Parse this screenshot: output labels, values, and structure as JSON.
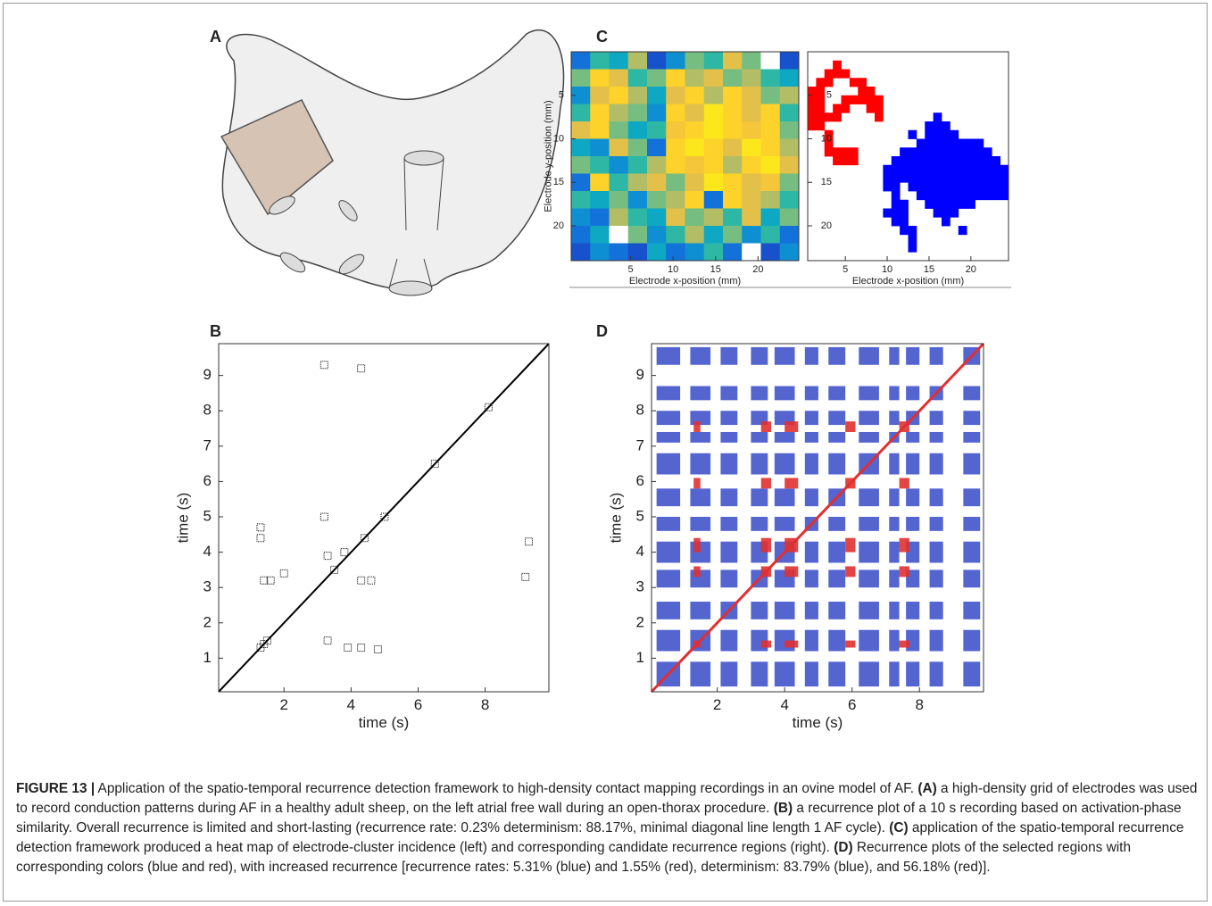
{
  "diagram": {
    "panel": "A"
  },
  "chart_data": [
    {
      "type": "heatmap",
      "panel": "C",
      "xlabel": "Electrode x-position (mm)",
      "ylabel": "Electrode y-position (mm)",
      "xlim": [
        -2,
        24.8
      ],
      "ylim": [
        0,
        24
      ],
      "xticks": [
        5,
        10,
        15,
        20
      ],
      "yticks": [
        5,
        10,
        15,
        20
      ],
      "values": [
        [
          0.2,
          0.5,
          0.4,
          0.7,
          0.1,
          0.3,
          0.6,
          0.5,
          0.8,
          0.6,
          null,
          0.1
        ],
        [
          0.6,
          0.9,
          0.8,
          0.5,
          0.6,
          0.9,
          0.7,
          0.8,
          0.6,
          0.7,
          0.5,
          0.4
        ],
        [
          0.3,
          0.8,
          0.9,
          0.7,
          0.4,
          0.8,
          0.9,
          0.7,
          0.9,
          0.8,
          0.6,
          0.7
        ],
        [
          0.5,
          0.9,
          0.7,
          0.6,
          0.3,
          0.9,
          0.8,
          0.95,
          0.9,
          0.8,
          0.9,
          0.5
        ],
        [
          0.8,
          0.9,
          0.6,
          0.4,
          0.5,
          0.85,
          0.9,
          0.95,
          0.9,
          0.85,
          0.9,
          0.6
        ],
        [
          0.4,
          0.3,
          0.8,
          0.6,
          0.2,
          0.9,
          0.95,
          0.9,
          0.8,
          0.95,
          0.9,
          0.7
        ],
        [
          0.6,
          0.5,
          0.3,
          0.5,
          0.7,
          0.9,
          0.85,
          0.9,
          0.7,
          0.9,
          0.95,
          0.8
        ],
        [
          0.2,
          0.9,
          0.5,
          0.7,
          0.8,
          0.6,
          0.8,
          0.95,
          0.9,
          0.8,
          0.85,
          0.6
        ],
        [
          0.5,
          0.4,
          0.6,
          0.3,
          0.6,
          0.7,
          0.9,
          0.2,
          0.9,
          0.8,
          0.7,
          0.5
        ],
        [
          0.3,
          0.2,
          0.7,
          0.5,
          0.4,
          0.8,
          0.6,
          0.7,
          0.5,
          0.8,
          0.4,
          0.6
        ],
        [
          0.2,
          0.4,
          null,
          0.6,
          0.3,
          0.5,
          0.7,
          0.4,
          0.6,
          0.3,
          0.5,
          0.2
        ],
        [
          0.1,
          0.3,
          0.2,
          0.1,
          0.4,
          0.2,
          0.3,
          0.5,
          0.2,
          null,
          0.1,
          0.3
        ]
      ]
    },
    {
      "type": "region_map",
      "xlabel": "Electrode x-position (mm)",
      "xlim": [
        0.5,
        24.5
      ],
      "ylim": [
        0,
        24
      ],
      "xticks": [
        5,
        10,
        15,
        20
      ],
      "yticks": [
        5,
        10,
        15,
        20
      ],
      "regions": [
        {
          "color": "#ff0000",
          "rows": [
            {
              "y": 2,
              "x": [
                4
              ]
            },
            {
              "y": 3,
              "x": [
                3,
                4,
                5
              ]
            },
            {
              "y": 4,
              "x": [
                2,
                3,
                6,
                7
              ]
            },
            {
              "y": 5,
              "x": [
                1,
                2,
                7,
                8
              ]
            },
            {
              "y": 6,
              "x": [
                1,
                2,
                5,
                6,
                7,
                8,
                9
              ]
            },
            {
              "y": 7,
              "x": [
                1,
                2,
                4,
                5,
                8,
                9
              ]
            },
            {
              "y": 8,
              "x": [
                1,
                2,
                3,
                4,
                9
              ]
            },
            {
              "y": 9,
              "x": [
                1,
                2
              ]
            },
            {
              "y": 10,
              "x": [
                3
              ]
            },
            {
              "y": 11,
              "x": [
                3
              ]
            },
            {
              "y": 12,
              "x": [
                3,
                4,
                5,
                6
              ]
            },
            {
              "y": 13,
              "x": [
                4,
                5,
                6
              ]
            }
          ]
        },
        {
          "color": "#0000ff",
          "rows": [
            {
              "y": 8,
              "x": [
                16
              ]
            },
            {
              "y": 9,
              "x": [
                15,
                16,
                17
              ]
            },
            {
              "y": 10,
              "x": [
                13,
                15,
                16,
                17,
                18
              ]
            },
            {
              "y": 11,
              "x": [
                14,
                15,
                16,
                17,
                18,
                19,
                20,
                21
              ]
            },
            {
              "y": 12,
              "x": [
                12,
                13,
                14,
                15,
                16,
                17,
                18,
                19,
                20,
                21,
                22
              ]
            },
            {
              "y": 13,
              "x": [
                11,
                12,
                13,
                14,
                15,
                16,
                17,
                18,
                19,
                20,
                21,
                22,
                23
              ]
            },
            {
              "y": 14,
              "x": [
                10,
                11,
                12,
                13,
                14,
                15,
                16,
                17,
                18,
                19,
                20,
                21,
                22,
                23,
                24
              ]
            },
            {
              "y": 15,
              "x": [
                10,
                11,
                12,
                13,
                14,
                15,
                16,
                17,
                18,
                19,
                20,
                21,
                22,
                23,
                24
              ]
            },
            {
              "y": 16,
              "x": [
                10,
                11,
                13,
                14,
                15,
                16,
                17,
                18,
                19,
                20,
                21,
                22,
                23,
                24
              ]
            },
            {
              "y": 17,
              "x": [
                11,
                14,
                15,
                16,
                17,
                18,
                19,
                20,
                21,
                22,
                23,
                24
              ]
            },
            {
              "y": 18,
              "x": [
                11,
                12,
                15,
                16,
                17,
                18,
                19,
                20
              ]
            },
            {
              "y": 19,
              "x": [
                10,
                11,
                12,
                16,
                17,
                18
              ]
            },
            {
              "y": 20,
              "x": [
                11,
                12,
                17
              ]
            },
            {
              "y": 21,
              "x": [
                12,
                13,
                19
              ]
            },
            {
              "y": 22,
              "x": [
                13
              ]
            },
            {
              "y": 23,
              "x": [
                13
              ]
            }
          ]
        }
      ]
    },
    {
      "type": "recurrence",
      "panel": "B",
      "xlabel": "time (s)",
      "ylabel": "time (s)",
      "xlim": [
        0.05,
        9.9
      ],
      "ylim": [
        0.05,
        9.9
      ],
      "xticks": [
        2,
        4,
        6,
        8
      ],
      "yticks": [
        1,
        2,
        3,
        4,
        5,
        6,
        7,
        8,
        9
      ],
      "color": "#000000",
      "points": {
        "x": [
          1.4,
          1.5,
          1.3,
          3.2,
          4.3,
          1.3,
          1.4,
          1.6,
          3.2,
          3.3,
          3.8,
          3.3,
          3.9,
          4.3,
          4.8,
          4.3,
          4.6,
          9.2,
          9.3,
          2.0,
          1.3,
          3.5,
          4.4,
          5.0,
          8.1,
          6.5
        ],
        "y": [
          1.4,
          1.5,
          1.3,
          9.3,
          9.2,
          4.4,
          3.2,
          3.2,
          5.0,
          3.9,
          4.0,
          1.5,
          1.3,
          1.3,
          1.25,
          3.2,
          3.2,
          3.3,
          4.3,
          3.4,
          4.7,
          3.5,
          4.4,
          5.0,
          8.1,
          6.5
        ]
      }
    },
    {
      "type": "recurrence_bands",
      "panel": "D",
      "xlabel": "time (s)",
      "ylabel": "time (s)",
      "xlim": [
        0.05,
        9.9
      ],
      "ylim": [
        0.05,
        9.9
      ],
      "xticks": [
        2,
        4,
        6,
        8
      ],
      "yticks": [
        1,
        2,
        3,
        4,
        5,
        6,
        7,
        8,
        9
      ],
      "series": [
        {
          "color": "#2b3fc4",
          "bands": [
            [
              0.2,
              0.9
            ],
            [
              1.2,
              1.8
            ],
            [
              2.1,
              2.6
            ],
            [
              3.0,
              3.5
            ],
            [
              3.7,
              4.3
            ],
            [
              4.6,
              5.0
            ],
            [
              5.3,
              5.8
            ],
            [
              6.2,
              6.8
            ],
            [
              7.1,
              7.4
            ],
            [
              7.6,
              8.0
            ],
            [
              8.3,
              8.7
            ],
            [
              9.3,
              9.8
            ]
          ]
        },
        {
          "color": "#e03030",
          "bands": [
            [
              1.3,
              1.5
            ],
            [
              3.3,
              3.6
            ],
            [
              4.0,
              4.4
            ],
            [
              5.8,
              6.1
            ],
            [
              7.4,
              7.7
            ]
          ]
        }
      ]
    }
  ],
  "caption": [
    {
      "text": "FIGURE 13 |",
      "bold": true
    },
    {
      "text": " Application of the spatio-temporal recurrence detection framework to high-density contact mapping recordings in an ovine model of AF. ",
      "bold": false
    },
    {
      "text": "(A)",
      "bold": true
    },
    {
      "text": " a high-density grid of electrodes was used to record conduction patterns during AF in a healthy adult sheep, on the left atrial free wall during an open-thorax procedure. ",
      "bold": false
    },
    {
      "text": "(B)",
      "bold": true
    },
    {
      "text": " a recurrence plot of a 10 s recording based on activation-phase similarity. Overall recurrence is limited and short-lasting (recurrence rate: 0.23% determinism: 88.17%, minimal diagonal line length 1 AF cycle). ",
      "bold": false
    },
    {
      "text": "(C)",
      "bold": true
    },
    {
      "text": "  application of the spatio-temporal recurrence detection framework produced a heat map of electrode-cluster incidence (left) and corresponding candidate recurrence regions (right). ",
      "bold": false
    },
    {
      "text": "(D)",
      "bold": true
    },
    {
      "text": " Recurrence plots of the selected regions with corresponding colors (blue and red), with increased recurrence [recurrence rates: 5.31% (blue) and 1.55% (red), determinism: 83.79% (blue), and 56.18% (red)].",
      "bold": false
    }
  ]
}
